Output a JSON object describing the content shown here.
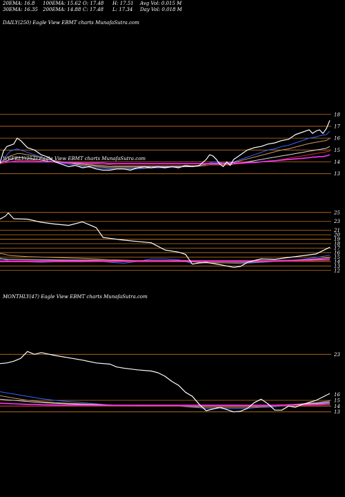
{
  "header": {
    "row1": [
      {
        "label": "20EMA: 16.8"
      },
      {
        "label": "100EMA: 15.62"
      },
      {
        "label": "O: 17.48"
      },
      {
        "label": "H: 17.51"
      },
      {
        "label": "Avg Vol: 0.015 M"
      }
    ],
    "row2": [
      {
        "label": "30EMA: 16.35"
      },
      {
        "label": "200EMA: 14.88"
      },
      {
        "label": "C: 17.48"
      },
      {
        "label": "L: 17.34"
      },
      {
        "label": "Day Vol: 0.018 M"
      }
    ]
  },
  "chart_data": [
    {
      "type": "line",
      "panel": "daily",
      "title": "DAILY(250) Eagle  View  EBMT charts MunafaSutra.com",
      "ylim": [
        12.4,
        18.8
      ],
      "yticks": [
        18,
        17,
        16,
        15,
        14,
        13
      ],
      "hlines": [
        18,
        17,
        16,
        15,
        14,
        13
      ],
      "x": [
        0,
        5,
        10,
        15,
        20,
        25,
        30,
        40,
        50,
        60,
        70,
        80,
        90,
        100,
        110,
        120,
        130,
        140,
        150,
        160,
        170,
        180,
        190,
        200,
        210,
        220,
        230,
        240,
        250,
        260,
        270,
        280,
        290,
        300,
        305,
        310,
        315,
        320,
        325,
        330,
        335,
        340,
        350,
        360,
        370,
        380,
        390,
        400,
        410,
        420,
        430,
        440,
        450,
        455,
        460,
        465,
        470,
        475,
        480
      ],
      "series": [
        {
          "color": "#ffffff",
          "values": [
            13.9,
            14.9,
            15.3,
            15.4,
            15.5,
            16.0,
            15.8,
            15.2,
            15.0,
            14.6,
            14.4,
            14.0,
            13.8,
            13.6,
            13.7,
            13.5,
            13.6,
            13.4,
            13.3,
            13.3,
            13.4,
            13.4,
            13.3,
            13.5,
            13.6,
            13.5,
            13.6,
            13.5,
            13.6,
            13.5,
            13.7,
            13.6,
            13.7,
            14.2,
            14.6,
            14.5,
            14.2,
            13.8,
            13.6,
            14.0,
            13.7,
            14.2,
            14.6,
            15.0,
            15.2,
            15.3,
            15.5,
            15.6,
            15.8,
            15.9,
            16.3,
            16.5,
            16.7,
            16.4,
            16.6,
            16.7,
            16.4,
            16.8,
            17.5
          ]
        },
        {
          "color": "#3366ff",
          "values": [
            13.8,
            14.2,
            14.6,
            14.9,
            15.0,
            15.1,
            15.0,
            14.8,
            14.6,
            14.4,
            14.2,
            14.1,
            13.9,
            13.8,
            13.7,
            13.6,
            13.55,
            13.5,
            13.45,
            13.4,
            13.4,
            13.4,
            13.4,
            13.4,
            13.45,
            13.5,
            13.5,
            13.5,
            13.55,
            13.55,
            13.6,
            13.6,
            13.65,
            13.8,
            13.9,
            14.0,
            14.0,
            13.95,
            13.9,
            13.9,
            13.95,
            14.0,
            14.2,
            14.4,
            14.6,
            14.8,
            15.0,
            15.1,
            15.3,
            15.4,
            15.6,
            15.8,
            16.0,
            16.05,
            16.1,
            16.2,
            16.25,
            16.3,
            16.6
          ]
        },
        {
          "color": "#cc9966",
          "values": [
            13.9,
            14.1,
            14.3,
            14.5,
            14.6,
            14.7,
            14.7,
            14.6,
            14.5,
            14.35,
            14.2,
            14.1,
            14.0,
            13.9,
            13.8,
            13.7,
            13.65,
            13.6,
            13.55,
            13.5,
            13.5,
            13.5,
            13.5,
            13.5,
            13.5,
            13.5,
            13.55,
            13.55,
            13.6,
            13.6,
            13.6,
            13.65,
            13.7,
            13.8,
            13.85,
            13.9,
            13.9,
            13.9,
            13.9,
            13.9,
            13.9,
            13.95,
            14.1,
            14.25,
            14.4,
            14.55,
            14.7,
            14.85,
            15.0,
            15.1,
            15.25,
            15.4,
            15.55,
            15.6,
            15.65,
            15.7,
            15.75,
            15.8,
            16.0
          ]
        },
        {
          "color": "#dddddd",
          "values": [
            13.9,
            14.0,
            14.1,
            14.2,
            14.3,
            14.35,
            14.35,
            14.3,
            14.25,
            14.15,
            14.05,
            14.0,
            13.95,
            13.9,
            13.85,
            13.8,
            13.75,
            13.7,
            13.65,
            13.6,
            13.6,
            13.6,
            13.6,
            13.6,
            13.6,
            13.6,
            13.6,
            13.6,
            13.6,
            13.6,
            13.6,
            13.6,
            13.65,
            13.7,
            13.75,
            13.75,
            13.75,
            13.75,
            13.75,
            13.75,
            13.75,
            13.8,
            13.9,
            14.0,
            14.1,
            14.2,
            14.3,
            14.4,
            14.5,
            14.6,
            14.7,
            14.8,
            14.9,
            14.95,
            15.0,
            15.05,
            15.1,
            15.15,
            15.3
          ]
        },
        {
          "color": "#cc3333",
          "values": [
            13.85,
            13.9,
            13.95,
            14.0,
            14.05,
            14.1,
            14.1,
            14.1,
            14.1,
            14.05,
            14.0,
            14.0,
            13.95,
            13.9,
            13.9,
            13.85,
            13.8,
            13.8,
            13.75,
            13.75,
            13.7,
            13.7,
            13.7,
            13.7,
            13.7,
            13.7,
            13.7,
            13.7,
            13.7,
            13.7,
            13.7,
            13.7,
            13.7,
            13.7,
            13.75,
            13.75,
            13.75,
            13.75,
            13.75,
            13.75,
            13.75,
            13.8,
            13.85,
            13.9,
            13.95,
            14.0,
            14.05,
            14.1,
            14.2,
            14.3,
            14.4,
            14.5,
            14.6,
            14.65,
            14.7,
            14.75,
            14.8,
            14.85,
            14.9
          ]
        },
        {
          "color": "#ff33ff",
          "values": [
            14.0,
            14.0,
            14.0,
            14.0,
            14.0,
            14.0,
            14.0,
            14.0,
            14.0,
            14.0,
            14.0,
            14.0,
            13.95,
            13.95,
            13.95,
            13.9,
            13.9,
            13.9,
            13.9,
            13.85,
            13.85,
            13.85,
            13.85,
            13.85,
            13.85,
            13.85,
            13.85,
            13.85,
            13.85,
            13.85,
            13.85,
            13.85,
            13.85,
            13.85,
            13.85,
            13.85,
            13.85,
            13.85,
            13.85,
            13.85,
            13.85,
            13.9,
            13.9,
            13.95,
            13.95,
            14.0,
            14.05,
            14.1,
            14.15,
            14.2,
            14.25,
            14.3,
            14.35,
            14.4,
            14.4,
            14.45,
            14.45,
            14.5,
            14.6
          ]
        }
      ]
    },
    {
      "type": "line",
      "panel": "weekly",
      "title": "WEEKLY(252) Eagle  View  EBMT charts MunafaSutra.com",
      "ylim": [
        11.5,
        25.9
      ],
      "yticks": [
        25,
        23,
        21,
        20,
        19,
        18,
        17,
        16,
        15,
        14,
        13,
        12
      ],
      "hlines": [
        25,
        23,
        21,
        20,
        19,
        18,
        17,
        16,
        15,
        14,
        13,
        12
      ],
      "x": [
        0,
        8,
        12,
        20,
        40,
        60,
        80,
        100,
        120,
        140,
        150,
        160,
        180,
        200,
        220,
        240,
        260,
        270,
        280,
        290,
        300,
        320,
        340,
        350,
        360,
        380,
        400,
        420,
        440,
        460,
        480
      ],
      "series": [
        {
          "color": "#ffffff",
          "values": [
            23.5,
            24.2,
            24.9,
            23.6,
            23.5,
            22.8,
            22.4,
            22.1,
            22.9,
            21.6,
            19.4,
            19.2,
            18.8,
            18.5,
            18.2,
            16.6,
            16.1,
            15.6,
            13.4,
            13.7,
            13.8,
            13.3,
            12.7,
            12.9,
            13.8,
            14.6,
            14.5,
            14.9,
            15.3,
            15.7,
            17.2
          ]
        },
        {
          "color": "#3366ff",
          "values": [
            14.8,
            14.4,
            14.2,
            14.0,
            13.9,
            13.8,
            13.9,
            14.0,
            14.1,
            14.2,
            14.0,
            13.8,
            13.6,
            14.0,
            14.6,
            14.6,
            14.4,
            14.0,
            13.5,
            13.6,
            13.7,
            13.7,
            13.6,
            13.5,
            13.6,
            13.8,
            14.0,
            14.2,
            14.5,
            14.9,
            15.4
          ]
        },
        {
          "color": "#cc9966",
          "values": [
            15.8,
            15.6,
            15.4,
            15.3,
            15.1,
            15.0,
            14.9,
            14.8,
            14.7,
            14.6,
            14.5,
            14.4,
            14.3,
            14.2,
            14.2,
            14.2,
            14.1,
            14.0,
            13.9,
            13.8,
            13.7,
            13.7,
            13.7,
            13.7,
            13.8,
            13.9,
            14.0,
            14.2,
            14.4,
            14.6,
            14.9
          ]
        },
        {
          "color": "#dddddd",
          "values": [
            14.6,
            14.55,
            14.5,
            14.5,
            14.45,
            14.4,
            14.35,
            14.3,
            14.3,
            14.3,
            14.25,
            14.2,
            14.2,
            14.2,
            14.2,
            14.2,
            14.15,
            14.1,
            14.05,
            14.0,
            14.0,
            14.0,
            14.0,
            14.0,
            14.0,
            14.05,
            14.1,
            14.2,
            14.3,
            14.45,
            14.6
          ]
        },
        {
          "color": "#ff33ff",
          "values": [
            14.1,
            14.1,
            14.1,
            14.1,
            14.1,
            14.1,
            14.1,
            14.15,
            14.15,
            14.15,
            14.15,
            14.15,
            14.15,
            14.15,
            14.2,
            14.2,
            14.2,
            14.2,
            14.15,
            14.15,
            14.15,
            14.15,
            14.15,
            14.15,
            14.15,
            14.2,
            14.2,
            14.25,
            14.3,
            14.4,
            14.5
          ]
        },
        {
          "color": "#cc3333",
          "values": [
            13.9,
            13.9,
            13.9,
            13.9,
            13.9,
            13.9,
            13.9,
            13.9,
            13.9,
            13.95,
            13.95,
            13.95,
            13.95,
            13.95,
            13.95,
            13.95,
            13.95,
            13.95,
            13.95,
            13.95,
            13.95,
            13.95,
            13.95,
            13.95,
            13.95,
            14.0,
            14.0,
            14.05,
            14.1,
            14.15,
            14.2
          ]
        }
      ]
    },
    {
      "type": "line",
      "panel": "monthly",
      "title": "MONTHLY(47) Eagle  View  EBMT charts MunafaSutra.com",
      "ylim": [
        12.6,
        24.0
      ],
      "yticks": [
        23,
        16,
        15,
        14,
        13
      ],
      "hlines": [
        23,
        15,
        14,
        13
      ],
      "x": [
        0,
        10,
        20,
        30,
        40,
        50,
        60,
        80,
        100,
        120,
        140,
        160,
        170,
        180,
        200,
        220,
        230,
        240,
        250,
        260,
        270,
        280,
        290,
        300,
        320,
        340,
        350,
        360,
        370,
        380,
        390,
        400,
        410,
        420,
        430,
        440,
        460,
        480
      ],
      "series": [
        {
          "color": "#ffffff",
          "values": [
            21.4,
            21.5,
            21.8,
            22.3,
            23.5,
            23.0,
            23.3,
            22.8,
            22.4,
            22.0,
            21.5,
            21.3,
            20.8,
            20.6,
            20.3,
            20.1,
            19.8,
            19.2,
            18.3,
            17.6,
            16.4,
            15.7,
            14.3,
            13.2,
            13.8,
            13.0,
            13.1,
            13.6,
            14.6,
            15.2,
            14.4,
            13.3,
            13.3,
            14.0,
            13.8,
            14.3,
            15.0,
            16.2
          ]
        },
        {
          "color": "#3366ff",
          "values": [
            16.5,
            16.3,
            16.1,
            15.9,
            15.7,
            15.5,
            15.3,
            15.0,
            14.8,
            14.6,
            14.4,
            14.2,
            14.1,
            14.0,
            14.0,
            14.0,
            14.0,
            14.0,
            14.0,
            14.0,
            13.9,
            13.8,
            13.7,
            13.6,
            13.6,
            13.6,
            13.6,
            13.6,
            13.7,
            13.8,
            13.8,
            13.9,
            14.0,
            14.1,
            14.2,
            14.3,
            14.5,
            14.8
          ]
        },
        {
          "color": "#cc9966",
          "values": [
            15.8,
            15.6,
            15.4,
            15.2,
            15.0,
            14.9,
            14.8,
            14.6,
            14.5,
            14.4,
            14.3,
            14.2,
            14.1,
            14.1,
            14.0,
            14.0,
            14.0,
            14.0,
            14.0,
            14.0,
            13.95,
            13.9,
            13.85,
            13.8,
            13.8,
            13.8,
            13.8,
            13.8,
            13.85,
            13.9,
            13.95,
            14.0,
            14.1,
            14.2,
            14.3,
            14.4,
            14.6,
            14.9
          ]
        },
        {
          "color": "#dddddd",
          "values": [
            15.2,
            15.1,
            15.0,
            14.9,
            14.8,
            14.7,
            14.6,
            14.5,
            14.4,
            14.3,
            14.25,
            14.2,
            14.15,
            14.1,
            14.1,
            14.1,
            14.1,
            14.1,
            14.1,
            14.1,
            14.05,
            14.0,
            14.0,
            14.0,
            14.0,
            14.0,
            14.0,
            14.0,
            14.0,
            14.05,
            14.1,
            14.15,
            14.2,
            14.25,
            14.3,
            14.35,
            14.45,
            14.6
          ]
        },
        {
          "color": "#ff33ff",
          "values": [
            14.5,
            14.45,
            14.4,
            14.35,
            14.3,
            14.3,
            14.25,
            14.2,
            14.2,
            14.2,
            14.15,
            14.15,
            14.15,
            14.15,
            14.15,
            14.15,
            14.15,
            14.15,
            14.15,
            14.15,
            14.15,
            14.15,
            14.15,
            14.15,
            14.15,
            14.15,
            14.15,
            14.15,
            14.15,
            14.15,
            14.15,
            14.15,
            14.2,
            14.2,
            14.25,
            14.25,
            14.3,
            14.4
          ]
        },
        {
          "color": "#cc3333",
          "values": [
            14.0,
            14.0,
            14.0,
            14.0,
            14.0,
            14.0,
            14.0,
            14.0,
            14.0,
            14.0,
            14.0,
            14.0,
            14.0,
            14.0,
            14.0,
            14.0,
            14.0,
            14.0,
            14.0,
            14.0,
            14.0,
            14.0,
            14.0,
            14.0,
            14.0,
            14.0,
            14.0,
            14.0,
            14.0,
            14.0,
            14.0,
            14.0,
            14.05,
            14.05,
            14.1,
            14.1,
            14.15,
            14.2
          ]
        }
      ]
    }
  ],
  "colors": {
    "background": "#000000",
    "gridline": "#c8781e",
    "price": "#ffffff",
    "ema_blue": "#3366ff",
    "ema_tan": "#cc9966",
    "ema_magenta": "#ff33ff",
    "ema_red": "#cc3333"
  }
}
